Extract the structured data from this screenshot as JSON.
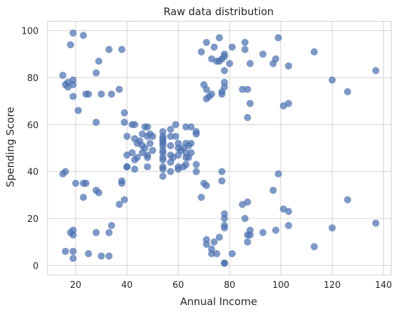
{
  "chart_data": {
    "type": "scatter",
    "title": "Raw data distribution",
    "xlabel": "Annual Income",
    "ylabel": "Spending Score",
    "xlim": [
      9,
      143
    ],
    "ylim": [
      -4,
      104
    ],
    "x_ticks": [
      20,
      40,
      60,
      80,
      100,
      120,
      140
    ],
    "y_ticks": [
      0,
      20,
      40,
      60,
      80,
      100
    ],
    "grid": true,
    "colors": {
      "point": "#4c72b0",
      "grid": "#d3d3d3",
      "frame": "#cccccc",
      "background": "#ffffff"
    },
    "points": [
      [
        15,
        81
      ],
      [
        16,
        77
      ],
      [
        17,
        76
      ],
      [
        17,
        78
      ],
      [
        18,
        94
      ],
      [
        19,
        72
      ],
      [
        19,
        79
      ],
      [
        19,
        77
      ],
      [
        19,
        99
      ],
      [
        21,
        66
      ],
      [
        23,
        98
      ],
      [
        24,
        73
      ],
      [
        25,
        73
      ],
      [
        28,
        82
      ],
      [
        29,
        87
      ],
      [
        30,
        73
      ],
      [
        33,
        92
      ],
      [
        34,
        73
      ],
      [
        37,
        75
      ],
      [
        38,
        92
      ],
      [
        28,
        61
      ],
      [
        39,
        65
      ],
      [
        39,
        61
      ],
      [
        42,
        60
      ],
      [
        43,
        60
      ],
      [
        43,
        54
      ],
      [
        44,
        52
      ],
      [
        46,
        51
      ],
      [
        46,
        56
      ],
      [
        47,
        59
      ],
      [
        48,
        59
      ],
      [
        48,
        55
      ],
      [
        48,
        47
      ],
      [
        49,
        56
      ],
      [
        50,
        55
      ],
      [
        42,
        48
      ],
      [
        43,
        45
      ],
      [
        44,
        46
      ],
      [
        45,
        53
      ],
      [
        46,
        48
      ],
      [
        47,
        50
      ],
      [
        48,
        46
      ],
      [
        49,
        52
      ],
      [
        40,
        55
      ],
      [
        40,
        47
      ],
      [
        40,
        42
      ],
      [
        40,
        42
      ],
      [
        43,
        41
      ],
      [
        48,
        42
      ],
      [
        50,
        49
      ],
      [
        54,
        57
      ],
      [
        54,
        55
      ],
      [
        54,
        54
      ],
      [
        54,
        53
      ],
      [
        54,
        52
      ],
      [
        54,
        51
      ],
      [
        54,
        49
      ],
      [
        54,
        48
      ],
      [
        54,
        46
      ],
      [
        54,
        45
      ],
      [
        54,
        42
      ],
      [
        54,
        41
      ],
      [
        54,
        38
      ],
      [
        57,
        58
      ],
      [
        57,
        55
      ],
      [
        57,
        51
      ],
      [
        57,
        47
      ],
      [
        57,
        44
      ],
      [
        57,
        40
      ],
      [
        58,
        46
      ],
      [
        59,
        60
      ],
      [
        59,
        55
      ],
      [
        60,
        52
      ],
      [
        60,
        50
      ],
      [
        60,
        47
      ],
      [
        60,
        42
      ],
      [
        60,
        41
      ],
      [
        61,
        49
      ],
      [
        62,
        50
      ],
      [
        62,
        42
      ],
      [
        63,
        59
      ],
      [
        63,
        52
      ],
      [
        63,
        48
      ],
      [
        63,
        46
      ],
      [
        63,
        43
      ],
      [
        64,
        51
      ],
      [
        64,
        46
      ],
      [
        65,
        48
      ],
      [
        65,
        52
      ],
      [
        65,
        59
      ],
      [
        67,
        56
      ],
      [
        67,
        57
      ],
      [
        67,
        43
      ],
      [
        67,
        40
      ],
      [
        15,
        39
      ],
      [
        16,
        40
      ],
      [
        19,
        6
      ],
      [
        16,
        6
      ],
      [
        18,
        14
      ],
      [
        19,
        15
      ],
      [
        19,
        13
      ],
      [
        20,
        35
      ],
      [
        23,
        35
      ],
      [
        23,
        29
      ],
      [
        24,
        35
      ],
      [
        25,
        5
      ],
      [
        28,
        14
      ],
      [
        28,
        32
      ],
      [
        29,
        31
      ],
      [
        30,
        4
      ],
      [
        33,
        4
      ],
      [
        33,
        14
      ],
      [
        34,
        17
      ],
      [
        37,
        26
      ],
      [
        38,
        36
      ],
      [
        38,
        35
      ],
      [
        39,
        28
      ],
      [
        19,
        3
      ],
      [
        69,
        91
      ],
      [
        70,
        77
      ],
      [
        71,
        95
      ],
      [
        71,
        75
      ],
      [
        71,
        71
      ],
      [
        72,
        72
      ],
      [
        73,
        88
      ],
      [
        73,
        73
      ],
      [
        74,
        93
      ],
      [
        75,
        87
      ],
      [
        76,
        97
      ],
      [
        76,
        87
      ],
      [
        77,
        74
      ],
      [
        77,
        88
      ],
      [
        77,
        73
      ],
      [
        78,
        90
      ],
      [
        78,
        89
      ],
      [
        78,
        78
      ],
      [
        78,
        76
      ],
      [
        78,
        83
      ],
      [
        80,
        86
      ],
      [
        81,
        93
      ],
      [
        85,
        75
      ],
      [
        86,
        92
      ],
      [
        86,
        95
      ],
      [
        87,
        75
      ],
      [
        87,
        63
      ],
      [
        88,
        69
      ],
      [
        88,
        86
      ],
      [
        93,
        90
      ],
      [
        97,
        86
      ],
      [
        98,
        88
      ],
      [
        99,
        97
      ],
      [
        101,
        68
      ],
      [
        103,
        85
      ],
      [
        103,
        69
      ],
      [
        113,
        91
      ],
      [
        120,
        79
      ],
      [
        126,
        74
      ],
      [
        137,
        83
      ],
      [
        69,
        29
      ],
      [
        70,
        35
      ],
      [
        71,
        11
      ],
      [
        71,
        9
      ],
      [
        71,
        34
      ],
      [
        73,
        5
      ],
      [
        73,
        7
      ],
      [
        74,
        10
      ],
      [
        75,
        5
      ],
      [
        76,
        12
      ],
      [
        77,
        36
      ],
      [
        77,
        40
      ],
      [
        78,
        22
      ],
      [
        78,
        17
      ],
      [
        78,
        16
      ],
      [
        78,
        20
      ],
      [
        78,
        1
      ],
      [
        78,
        1
      ],
      [
        81,
        5
      ],
      [
        85,
        26
      ],
      [
        86,
        20
      ],
      [
        87,
        13
      ],
      [
        87,
        27
      ],
      [
        87,
        10
      ],
      [
        88,
        13
      ],
      [
        88,
        15
      ],
      [
        93,
        14
      ],
      [
        97,
        32
      ],
      [
        98,
        15
      ],
      [
        99,
        39
      ],
      [
        101,
        24
      ],
      [
        103,
        17
      ],
      [
        103,
        23
      ],
      [
        113,
        8
      ],
      [
        120,
        16
      ],
      [
        126,
        28
      ],
      [
        137,
        18
      ]
    ]
  }
}
